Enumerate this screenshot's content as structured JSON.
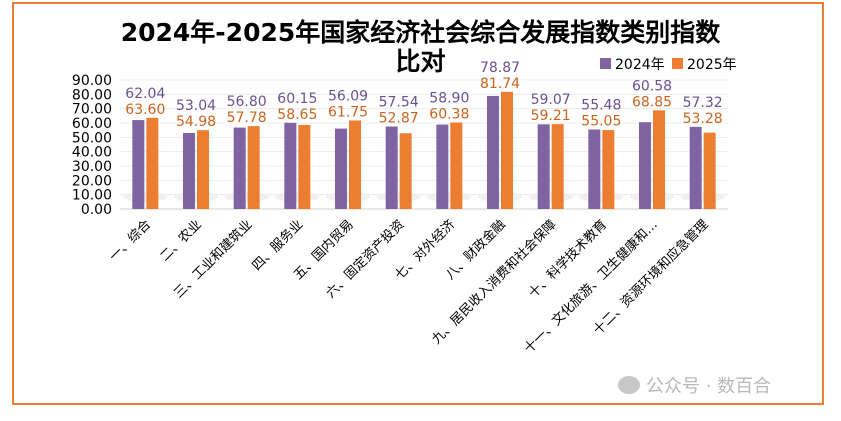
{
  "chart_data": {
    "type": "bar",
    "title_line1": "2024年-2025年国家经济社会综合发展指数类别指数",
    "title_line2": "比对",
    "categories": [
      "一、综合",
      "二、农业",
      "三、工业和建筑业",
      "四、服务业",
      "五、国内贸易",
      "六、固定资产投资",
      "七、对外经济",
      "八、财政金融",
      "九、居民收入消费和社会保障",
      "十、科学技术教育",
      "十一、文化旅游、卫生健康和…",
      "十二、资源环境和应急管理"
    ],
    "series": [
      {
        "name": "2024年",
        "color": "#8064A2",
        "values": [
          62.04,
          53.04,
          56.8,
          60.15,
          56.09,
          57.54,
          58.9,
          78.87,
          59.07,
          55.48,
          60.58,
          57.32
        ]
      },
      {
        "name": "2025年",
        "color": "#ED7D31",
        "values": [
          63.6,
          54.98,
          57.78,
          58.65,
          61.75,
          52.87,
          60.38,
          81.74,
          59.21,
          55.05,
          68.85,
          53.28
        ]
      }
    ],
    "yticks": [
      "0.00",
      "10.00",
      "20.00",
      "30.00",
      "40.00",
      "50.00",
      "60.00",
      "70.00",
      "80.00",
      "90.00"
    ],
    "ylim": [
      0,
      90
    ],
    "grid": true,
    "legend": "top-center",
    "xlabel": "",
    "ylabel": ""
  },
  "watermark": "公众号 · 数百合"
}
